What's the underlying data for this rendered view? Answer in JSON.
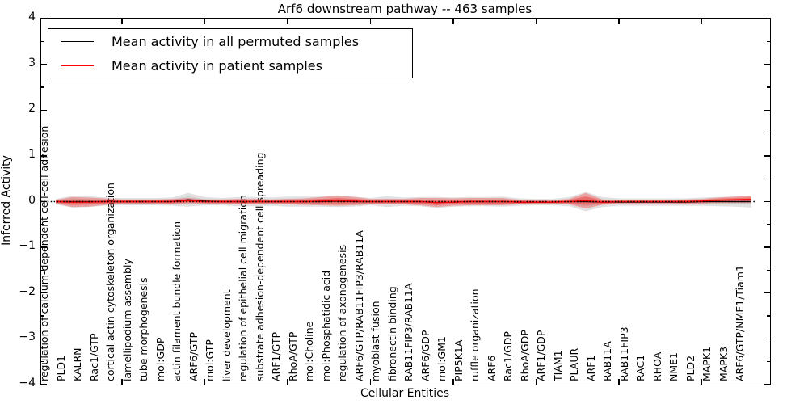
{
  "chart_data": {
    "type": "area",
    "title": "Arf6 downstream pathway -- 463 samples",
    "sample_count": 463,
    "xlabel": "Cellular Entities",
    "ylabel": "Inferred Activity",
    "ylim": [
      -4,
      4
    ],
    "ytick_labels": [
      "4",
      "3",
      "2",
      "1",
      "0",
      "−1",
      "−2",
      "−3",
      "−4"
    ],
    "ytick_values": [
      4,
      3,
      2,
      1,
      0,
      -1,
      -2,
      -3,
      -4
    ],
    "minor_ytick_values": [
      3.5,
      2.5,
      1.5,
      0.5,
      -0.5,
      -1.5,
      -2.5,
      -3.5
    ],
    "xtick_every": 5,
    "grid": false,
    "legend_position": "upper left",
    "legend": [
      {
        "label": "Mean activity in all permuted samples",
        "color": "#000000"
      },
      {
        "label": "Mean activity in patient samples",
        "color": "#ff0000"
      }
    ],
    "zero_line": {
      "style": "dotted",
      "color": "#000000",
      "y": 0
    },
    "categories": [
      "regulation of calcium-dependent cell-cell adhesion",
      "PLD1",
      "KALRN",
      "Rac1/GTP",
      "cortical actin cytoskeleton organization",
      "lamellipodium assembly",
      "tube morphogenesis",
      "mol:GDP",
      "actin filament bundle formation",
      "ARF6/GTP",
      "mol:GTP",
      "liver development",
      "regulation of epithelial cell migration",
      "substrate adhesion-dependent cell spreading",
      "ARF1/GTP",
      "RhoA/GTP",
      "mol:Choline",
      "mol:Phosphatidic acid",
      "regulation of axonogenesis",
      "ARF6/GTP/RAB11FIP3/RAB11A",
      "myoblast fusion",
      "fibronectin binding",
      "RAB11FIP3/RAB11A",
      "ARF6/GDP",
      "mol:GM1",
      "PIP5K1A",
      "ruffle organization",
      "ARF6",
      "Rac1/GDP",
      "RhoA/GDP",
      "ARF1/GDP",
      "TIAM1",
      "PLAUR",
      "ARF1",
      "RAB11A",
      "RAB11FIP3",
      "RAC1",
      "RHOA",
      "NME1",
      "PLD2",
      "MAPK1",
      "MAPK3",
      "ARF6/GTP/NME1/Tiam1"
    ],
    "series": [
      {
        "name": "Mean activity in all permuted samples",
        "role": "permuted_mean_line",
        "color": "#000000",
        "values": [
          0,
          0,
          0,
          0,
          0,
          0,
          0,
          0,
          0.04,
          0.01,
          0,
          0,
          0,
          0,
          0,
          0,
          0,
          0.01,
          0,
          0,
          0,
          0,
          0,
          -0.02,
          -0.01,
          0,
          0,
          0,
          -0.01,
          -0.01,
          -0.01,
          0,
          0,
          -0.01,
          -0.01,
          -0.01,
          -0.01,
          -0.01,
          -0.01,
          0,
          0,
          0,
          0
        ]
      },
      {
        "name": "Mean activity in patient samples",
        "role": "patient_mean_line",
        "color": "#ff0000",
        "values": [
          0,
          -0.01,
          -0.01,
          0,
          0,
          0,
          0,
          0,
          0.02,
          0,
          0,
          0,
          0,
          0,
          0,
          0,
          0.01,
          0.02,
          0.01,
          0,
          0,
          0,
          0,
          -0.02,
          -0.01,
          0,
          0,
          0,
          -0.01,
          -0.01,
          -0.01,
          0,
          0.02,
          -0.01,
          0,
          0,
          0,
          0,
          0,
          0.01,
          0.03,
          0.04,
          0.05
        ]
      },
      {
        "name": "Permuted samples band half-width",
        "role": "permuted_band_halfwidth",
        "color": "#dcdcdc",
        "values": [
          0.06,
          0.13,
          0.12,
          0.09,
          0.08,
          0.08,
          0.08,
          0.09,
          0.15,
          0.09,
          0.08,
          0.1,
          0.1,
          0.09,
          0.11,
          0.11,
          0.11,
          0.13,
          0.11,
          0.08,
          0.12,
          0.09,
          0.1,
          0.12,
          0.1,
          0.1,
          0.1,
          0.11,
          0.08,
          0.07,
          0.07,
          0.1,
          0.21,
          0.11,
          0.08,
          0.08,
          0.08,
          0.08,
          0.08,
          0.09,
          0.1,
          0.11,
          0.13
        ]
      },
      {
        "name": "Patient samples band half-width (outer)",
        "role": "patient_band_halfwidth_outer",
        "color": "#f4a9a4",
        "values": [
          0.04,
          0.11,
          0.1,
          0.07,
          0.05,
          0.05,
          0.05,
          0.06,
          0.06,
          0.05,
          0.05,
          0.06,
          0.06,
          0.05,
          0.06,
          0.07,
          0.09,
          0.11,
          0.09,
          0.06,
          0.06,
          0.06,
          0.08,
          0.1,
          0.08,
          0.08,
          0.08,
          0.08,
          0.05,
          0.04,
          0.04,
          0.06,
          0.17,
          0.06,
          0.04,
          0.04,
          0.04,
          0.04,
          0.05,
          0.05,
          0.06,
          0.07,
          0.08
        ]
      },
      {
        "name": "Patient samples band half-width (inner)",
        "role": "patient_band_halfwidth_inner",
        "color": "#e87f7a",
        "values": [
          0.02,
          0.06,
          0.055,
          0.04,
          0.03,
          0.03,
          0.03,
          0.035,
          0.035,
          0.03,
          0.03,
          0.035,
          0.035,
          0.03,
          0.035,
          0.04,
          0.05,
          0.06,
          0.05,
          0.035,
          0.035,
          0.035,
          0.045,
          0.055,
          0.045,
          0.045,
          0.045,
          0.045,
          0.03,
          0.02,
          0.02,
          0.035,
          0.095,
          0.035,
          0.02,
          0.02,
          0.02,
          0.02,
          0.03,
          0.03,
          0.035,
          0.04,
          0.045
        ]
      }
    ]
  }
}
